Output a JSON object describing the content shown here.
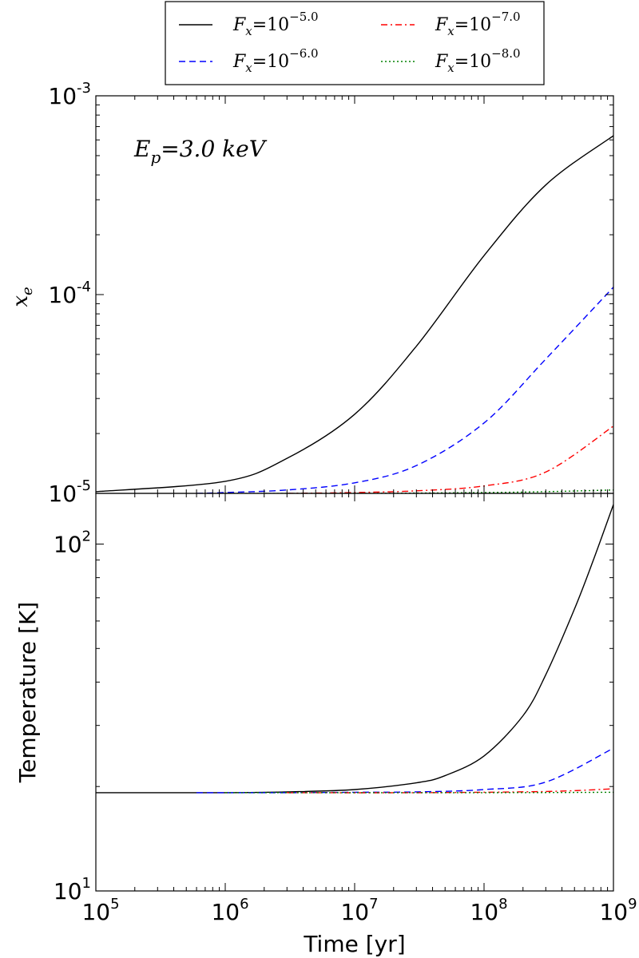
{
  "chart_data": [
    {
      "type": "line",
      "panel": "top",
      "ylabel": "x_e",
      "xscale": "log",
      "yscale": "log",
      "xlim": [
        100000,
        1000000000
      ],
      "ylim": [
        1e-05,
        0.001
      ],
      "y_tick_labels": [
        {
          "value": 1e-05,
          "base": "10",
          "exp": "-5"
        },
        {
          "value": 0.0001,
          "base": "10",
          "exp": "-4"
        },
        {
          "value": 0.001,
          "base": "10",
          "exp": "-3"
        }
      ],
      "annotation": {
        "text": "E_p = 3.0 keV",
        "sym": "E",
        "sub": "p",
        "rest": "=3.0 keV"
      },
      "series": [
        {
          "name": "F_x = 10^-5.0",
          "color": "#000000",
          "dash": "solid",
          "x": [
            100000,
            1000000,
            3000000,
            10000000,
            30000000,
            100000000,
            300000000,
            1000000000
          ],
          "y": [
            1.02e-05,
            1.15e-05,
            1.5e-05,
            2.5e-05,
            5.5e-05,
            0.000157,
            0.000356,
            0.00063
          ]
        },
        {
          "name": "F_x = 10^-6.0",
          "color": "#0000ff",
          "dash": "dashed",
          "x": [
            600000,
            1000000,
            3000000,
            10000000,
            30000000,
            100000000,
            300000000,
            1000000000
          ],
          "y": [
            1e-05,
            1.01e-05,
            1.04e-05,
            1.13e-05,
            1.38e-05,
            2.26e-05,
            4.74e-05,
            0.000109
          ]
        },
        {
          "name": "F_x = 10^-7.0",
          "color": "#ff0000",
          "dash": "dashdot",
          "x": [
            3000000,
            10000000,
            30000000,
            100000000,
            300000000,
            1000000000
          ],
          "y": [
            1e-05,
            1.01e-05,
            1.03e-05,
            1.09e-05,
            1.28e-05,
            2.18e-05
          ]
        },
        {
          "name": "F_x = 10^-8.0",
          "color": "#008000",
          "dash": "dotted",
          "x": [
            1000000,
            10000000,
            100000000,
            300000000,
            1000000000
          ],
          "y": [
            1e-05,
            1e-05,
            1.01e-05,
            1.02e-05,
            1.04e-05
          ]
        }
      ]
    },
    {
      "type": "line",
      "panel": "bottom",
      "ylabel": "Temperature [K]",
      "xlabel": "Time [yr]",
      "xscale": "log",
      "yscale": "log",
      "xlim": [
        100000,
        1000000000
      ],
      "ylim": [
        10,
        140
      ],
      "x_tick_labels": [
        {
          "value": 100000,
          "base": "10",
          "exp": "5"
        },
        {
          "value": 1000000,
          "base": "10",
          "exp": "6"
        },
        {
          "value": 10000000,
          "base": "10",
          "exp": "7"
        },
        {
          "value": 100000000,
          "base": "10",
          "exp": "8"
        },
        {
          "value": 1000000000,
          "base": "10",
          "exp": "9"
        }
      ],
      "y_tick_labels": [
        {
          "value": 10,
          "base": "10",
          "exp": "1"
        },
        {
          "value": 100,
          "base": "10",
          "exp": "2"
        }
      ],
      "series": [
        {
          "name": "F_x = 10^-5.0",
          "color": "#000000",
          "dash": "solid",
          "x": [
            100000,
            1000000,
            3000000,
            10000000,
            30000000,
            50000000,
            100000000,
            200000000,
            300000000,
            500000000,
            700000000,
            1000000000
          ],
          "y": [
            19.2,
            19.2,
            19.3,
            19.6,
            20.5,
            21.5,
            24.5,
            32,
            42,
            65,
            90,
            130
          ]
        },
        {
          "name": "F_x = 10^-6.0",
          "color": "#0000ff",
          "dash": "dashed",
          "x": [
            600000,
            3000000,
            10000000,
            30000000,
            100000000,
            300000000,
            1000000000
          ],
          "y": [
            19.2,
            19.2,
            19.25,
            19.3,
            19.6,
            20.6,
            25.8
          ]
        },
        {
          "name": "F_x = 10^-7.0",
          "color": "#ff0000",
          "dash": "dashdot",
          "x": [
            3000000,
            30000000,
            300000000,
            1000000000
          ],
          "y": [
            19.2,
            19.2,
            19.35,
            19.7
          ]
        },
        {
          "name": "F_x = 10^-8.0",
          "color": "#008000",
          "dash": "dotted",
          "x": [
            1000000,
            100000000,
            1000000000
          ],
          "y": [
            19.2,
            19.2,
            19.25
          ]
        }
      ]
    }
  ],
  "legend": {
    "placement": "top-center",
    "columns": 2,
    "entries": [
      {
        "sym": "F",
        "sub": "x",
        "eq": "=10",
        "exp": "−5.0",
        "color": "#000000",
        "dash": "solid"
      },
      {
        "sym": "F",
        "sub": "x",
        "eq": "=10",
        "exp": "−6.0",
        "color": "#0000ff",
        "dash": "dashed"
      },
      {
        "sym": "F",
        "sub": "x",
        "eq": "=10",
        "exp": "−7.0",
        "color": "#ff0000",
        "dash": "dashdot"
      },
      {
        "sym": "F",
        "sub": "x",
        "eq": "=10",
        "exp": "−8.0",
        "color": "#008000",
        "dash": "dotted"
      }
    ]
  },
  "top_ylabel": {
    "sym": "x",
    "sub": "e"
  }
}
